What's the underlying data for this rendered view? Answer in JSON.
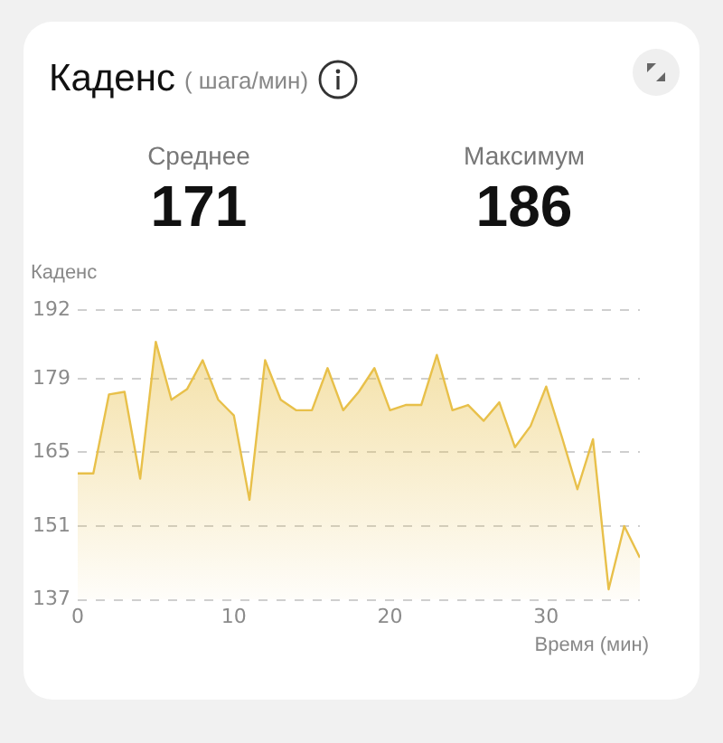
{
  "chart_data": {
    "type": "area",
    "title": "Каденс",
    "subtitle": "( шага/мин)",
    "ylabel": "Каденс",
    "xlabel": "Время (мин)",
    "annotations": [
      "Среднее",
      "171",
      "Максимум",
      "186"
    ],
    "x": [
      0,
      1,
      2,
      3,
      4,
      5,
      6,
      7,
      8,
      9,
      10,
      11,
      12,
      13,
      14,
      15,
      16,
      17,
      18,
      19,
      20,
      21,
      22,
      23,
      24,
      25,
      26,
      27,
      28,
      29,
      30,
      31,
      32,
      33,
      34,
      35,
      36
    ],
    "series": [
      {
        "color": "#e8c04a",
        "values": [
          161,
          161,
          176,
          176.5,
          160,
          186,
          175,
          177,
          182.5,
          175,
          172,
          156,
          182.5,
          175,
          173,
          173,
          181,
          173,
          176.5,
          181,
          173,
          174,
          174,
          183.5,
          173,
          174,
          171,
          174.5,
          166,
          170,
          177.5,
          168,
          158,
          167.5,
          139,
          151,
          145
        ]
      }
    ],
    "xlim": [
      0,
      36
    ],
    "xticks": [
      0,
      10,
      20,
      30
    ],
    "ylim": [
      137,
      192
    ],
    "yticks": [
      137,
      151,
      165,
      179,
      192
    ],
    "grid": "y",
    "legend": false
  }
}
